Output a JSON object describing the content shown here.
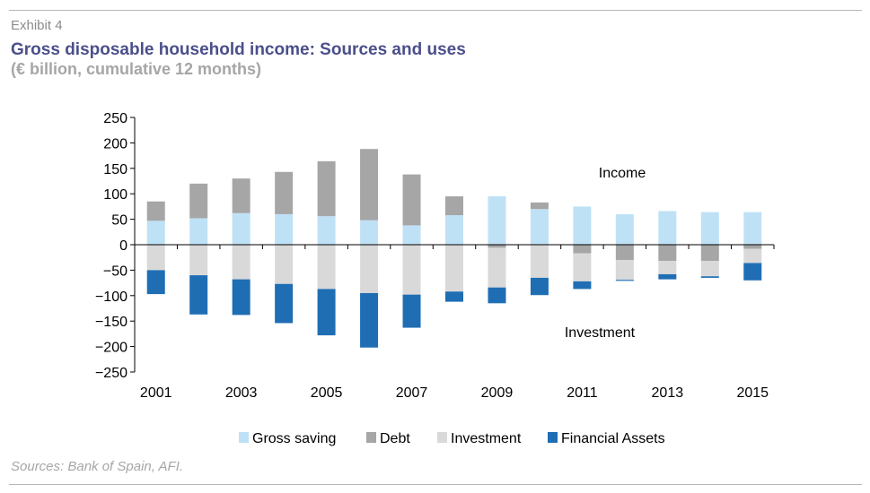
{
  "exhibit": "Exhibit 4",
  "title": "Gross disposable household income: Sources and uses",
  "subtitle": "(€ billion, cumulative 12 months)",
  "source": "Sources: Bank of Spain, AFI.",
  "colors": {
    "gross_saving": "#bfe1f6",
    "debt": "#a6a6a6",
    "investment": "#d9d9d9",
    "financial_assets": "#1f6eb4",
    "title": "#4b4f8a"
  },
  "chart_data": {
    "type": "bar",
    "stacked": true,
    "title": "",
    "xlabel": "",
    "ylabel": "",
    "ylim": [
      -250,
      250
    ],
    "yticks": [
      250,
      200,
      150,
      100,
      50,
      0,
      -50,
      -100,
      -150,
      -200,
      -250
    ],
    "categories": [
      "2001",
      "2002",
      "2003",
      "2004",
      "2005",
      "2006",
      "2007",
      "2008",
      "2009",
      "2010",
      "2011",
      "2012",
      "2013",
      "2014",
      "2015"
    ],
    "x_tick_labels": [
      "2001",
      "2003",
      "2005",
      "2007",
      "2009",
      "2011",
      "2013",
      "2015"
    ],
    "grid": false,
    "legend_position": "bottom",
    "series": [
      {
        "name": "Gross saving",
        "values": [
          47,
          52,
          62,
          60,
          56,
          48,
          38,
          58,
          95,
          70,
          75,
          60,
          66,
          64,
          64
        ]
      },
      {
        "name": "Debt",
        "values": [
          38,
          68,
          68,
          83,
          108,
          140,
          100,
          37,
          -6,
          13,
          -17,
          -30,
          -32,
          -32,
          -8
        ]
      },
      {
        "name": "Investment",
        "values": [
          -50,
          -60,
          -68,
          -77,
          -87,
          -95,
          -98,
          -92,
          -78,
          -65,
          -55,
          -39,
          -26,
          -30,
          -28
        ]
      },
      {
        "name": "Financial Assets",
        "values": [
          -47,
          -77,
          -70,
          -77,
          -91,
          -107,
          -65,
          -20,
          -31,
          -34,
          -15,
          -2,
          -10,
          -3,
          -34
        ]
      }
    ],
    "annotations": [
      {
        "text": "Income"
      },
      {
        "text": "Investment"
      }
    ]
  }
}
